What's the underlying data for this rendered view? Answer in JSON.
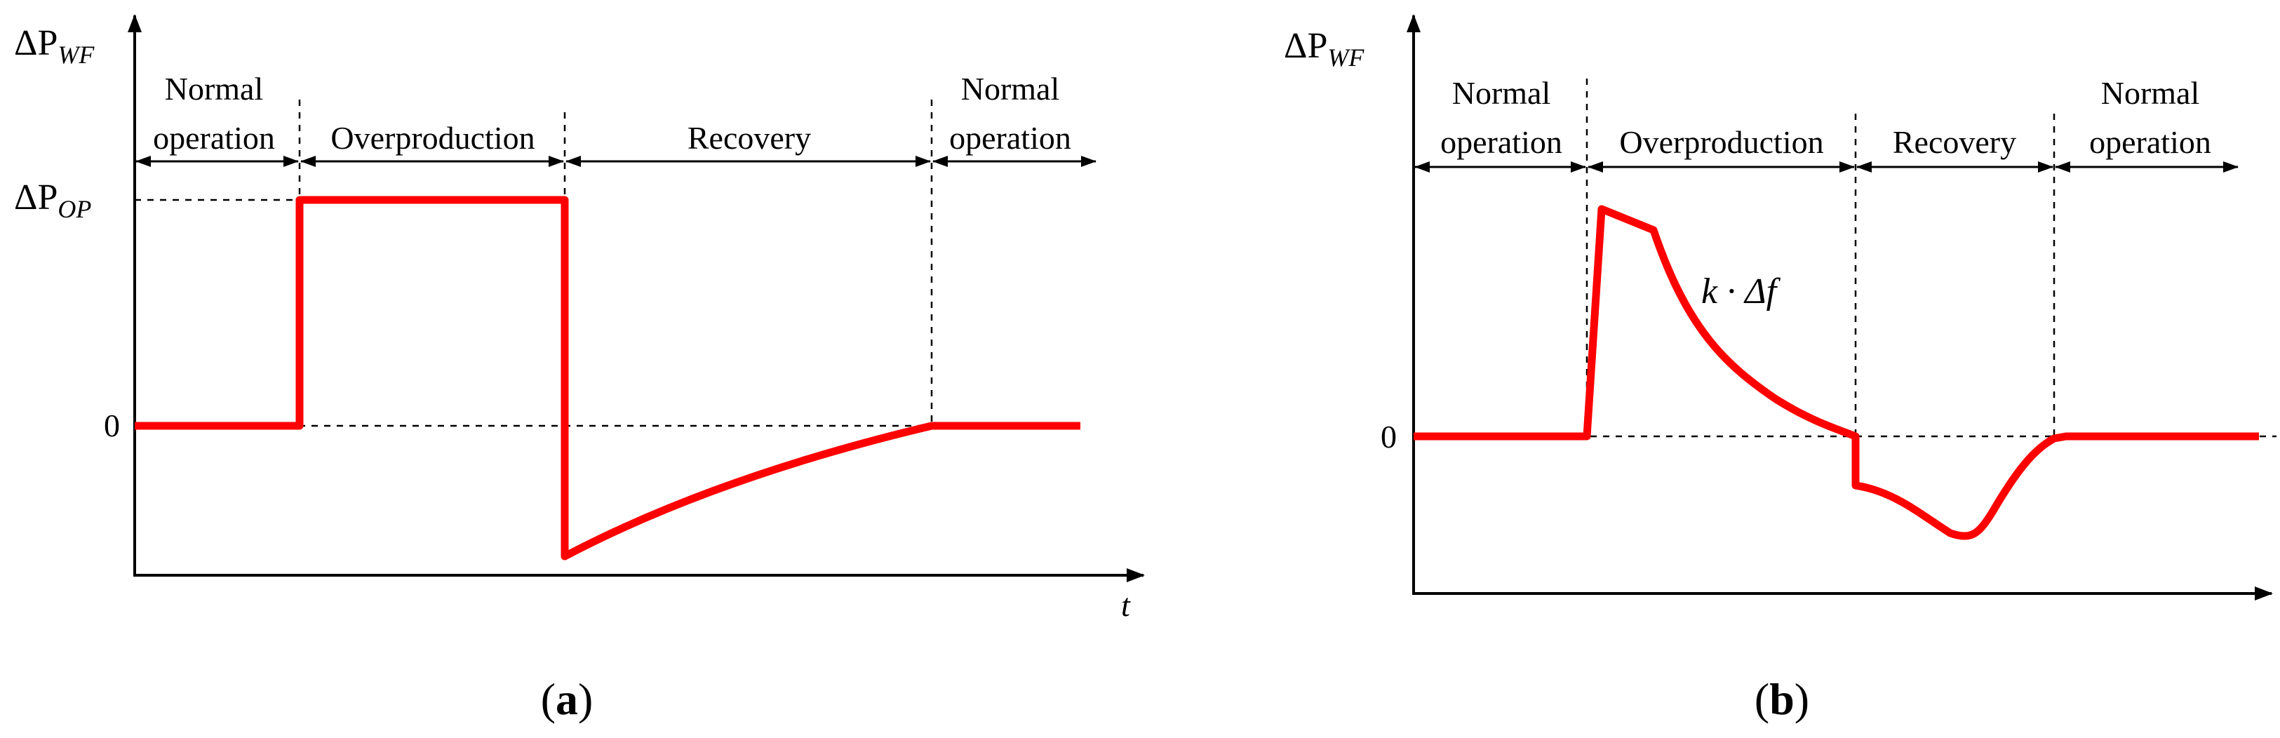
{
  "panel_a": {
    "y_label": "ΔP",
    "y_label_sub": "WF",
    "y_tick_op": "ΔP",
    "y_tick_op_sub": "OP",
    "y_tick_zero": "0",
    "x_label": "t",
    "caption_open": "(",
    "caption_letter": "a",
    "caption_close": ")",
    "phases": [
      "Normal",
      "operation",
      "Overproduction",
      "Recovery",
      "Normal",
      "operation"
    ]
  },
  "panel_b": {
    "y_label": "ΔP",
    "y_label_sub": "WF",
    "y_tick_zero": "0",
    "annotation": "k · Δf",
    "caption_open": "(",
    "caption_letter": "b",
    "caption_close": ")",
    "phases": [
      "Normal",
      "operation",
      "Overproduction",
      "Recovery",
      "Normal",
      "operation"
    ]
  },
  "colors": {
    "curve": "#ff0000",
    "axes": "#000000"
  }
}
